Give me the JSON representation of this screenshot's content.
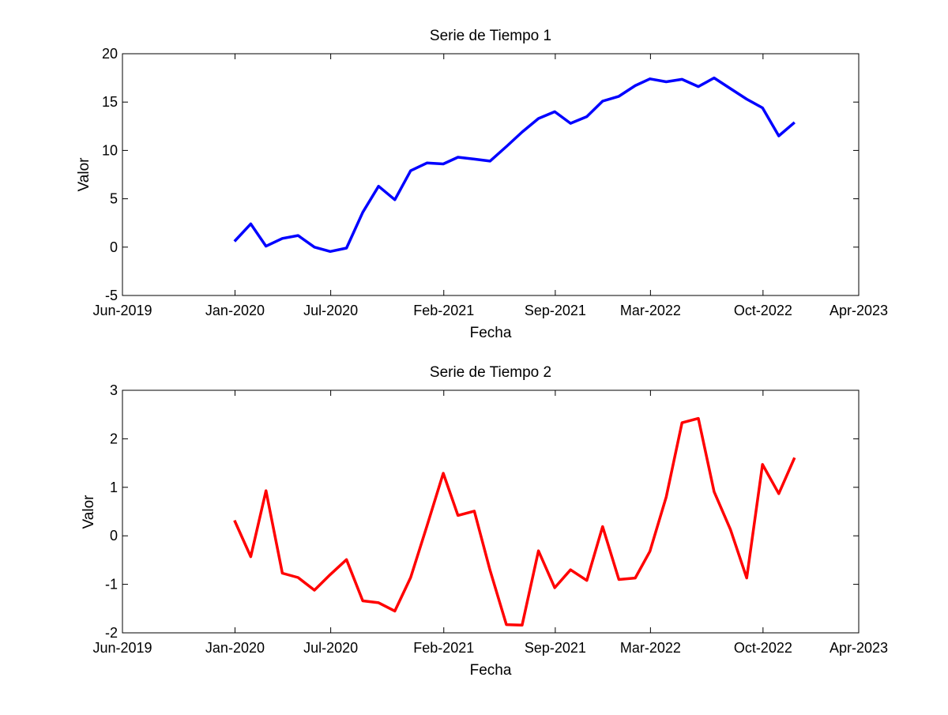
{
  "chart_data": [
    {
      "type": "line",
      "title": "Serie de Tiempo 1",
      "xlabel": "Fecha",
      "ylabel": "Valor",
      "xlim": [
        "2019-06-01",
        "2023-04-01"
      ],
      "ylim": [
        -5,
        20
      ],
      "x_ticks": [
        {
          "date": "2019-06-01",
          "label": "Jun-2019"
        },
        {
          "date": "2020-01-01",
          "label": "Jan-2020"
        },
        {
          "date": "2020-07-01",
          "label": "Jul-2020"
        },
        {
          "date": "2021-02-01",
          "label": "Feb-2021"
        },
        {
          "date": "2021-09-01",
          "label": "Sep-2021"
        },
        {
          "date": "2022-03-01",
          "label": "Mar-2022"
        },
        {
          "date": "2022-10-01",
          "label": "Oct-2022"
        },
        {
          "date": "2023-04-01",
          "label": "Apr-2023"
        }
      ],
      "y_ticks": [
        -5,
        0,
        5,
        10,
        15,
        20
      ],
      "grid": false,
      "series": [
        {
          "color": "#0000ff",
          "x": [
            "2019-12-31",
            "2020-01-31",
            "2020-02-29",
            "2020-03-31",
            "2020-04-30",
            "2020-05-31",
            "2020-06-30",
            "2020-07-31",
            "2020-08-31",
            "2020-09-30",
            "2020-10-31",
            "2020-11-30",
            "2020-12-31",
            "2021-01-31",
            "2021-02-28",
            "2021-03-31",
            "2021-04-30",
            "2021-05-31",
            "2021-06-30",
            "2021-07-31",
            "2021-08-31",
            "2021-09-30",
            "2021-10-31",
            "2021-11-30",
            "2021-12-31",
            "2022-01-31",
            "2022-02-28",
            "2022-03-31",
            "2022-04-30",
            "2022-05-31",
            "2022-06-30",
            "2022-07-31",
            "2022-08-31",
            "2022-09-30",
            "2022-10-31",
            "2022-11-30",
            "2022-12-31"
          ],
          "values": [
            0.6,
            2.4,
            0.1,
            0.9,
            1.2,
            0.0,
            -0.45,
            -0.1,
            3.6,
            6.3,
            4.9,
            7.9,
            8.7,
            8.6,
            9.3,
            9.1,
            8.9,
            10.4,
            11.9,
            13.3,
            14.0,
            12.8,
            13.5,
            15.1,
            15.6,
            16.7,
            17.4,
            17.1,
            17.35,
            16.6,
            17.5,
            16.4,
            15.3,
            14.4,
            11.5,
            12.9,
            null
          ]
        }
      ]
    },
    {
      "type": "line",
      "title": "Serie de Tiempo 2",
      "xlabel": "Fecha",
      "ylabel": "Valor",
      "xlim": [
        "2019-06-01",
        "2023-04-01"
      ],
      "ylim": [
        -2,
        3
      ],
      "x_ticks": [
        {
          "date": "2019-06-01",
          "label": "Jun-2019"
        },
        {
          "date": "2020-01-01",
          "label": "Jan-2020"
        },
        {
          "date": "2020-07-01",
          "label": "Jul-2020"
        },
        {
          "date": "2021-02-01",
          "label": "Feb-2021"
        },
        {
          "date": "2021-09-01",
          "label": "Sep-2021"
        },
        {
          "date": "2022-03-01",
          "label": "Mar-2022"
        },
        {
          "date": "2022-10-01",
          "label": "Oct-2022"
        },
        {
          "date": "2023-04-01",
          "label": "Apr-2023"
        }
      ],
      "y_ticks": [
        -2,
        -1,
        0,
        1,
        2,
        3
      ],
      "grid": false,
      "series": [
        {
          "color": "#ff0000",
          "x": [
            "2019-12-31",
            "2020-01-31",
            "2020-02-29",
            "2020-03-31",
            "2020-04-30",
            "2020-05-31",
            "2020-06-30",
            "2020-07-31",
            "2020-08-31",
            "2020-09-30",
            "2020-10-31",
            "2020-11-30",
            "2020-12-31",
            "2021-01-31",
            "2021-02-28",
            "2021-03-31",
            "2021-04-30",
            "2021-05-31",
            "2021-06-30",
            "2021-07-31",
            "2021-08-31",
            "2021-09-30",
            "2021-10-31",
            "2021-11-30",
            "2021-12-31",
            "2022-01-31",
            "2022-02-28",
            "2022-03-31",
            "2022-04-30",
            "2022-05-31",
            "2022-06-30",
            "2022-07-31",
            "2022-08-31",
            "2022-09-30",
            "2022-10-31",
            "2022-11-30"
          ],
          "values": [
            0.32,
            -0.43,
            0.93,
            -0.77,
            -0.86,
            -1.12,
            -0.8,
            -0.49,
            -1.34,
            -1.38,
            -1.55,
            -0.86,
            0.2,
            1.29,
            0.42,
            0.51,
            -0.71,
            -1.83,
            -1.84,
            -0.31,
            -1.07,
            -0.7,
            -0.92,
            0.19,
            -0.9,
            -0.87,
            -0.32,
            0.8,
            2.33,
            2.42,
            0.91,
            0.13,
            -0.87,
            1.47,
            0.87,
            1.61
          ]
        }
      ]
    }
  ]
}
